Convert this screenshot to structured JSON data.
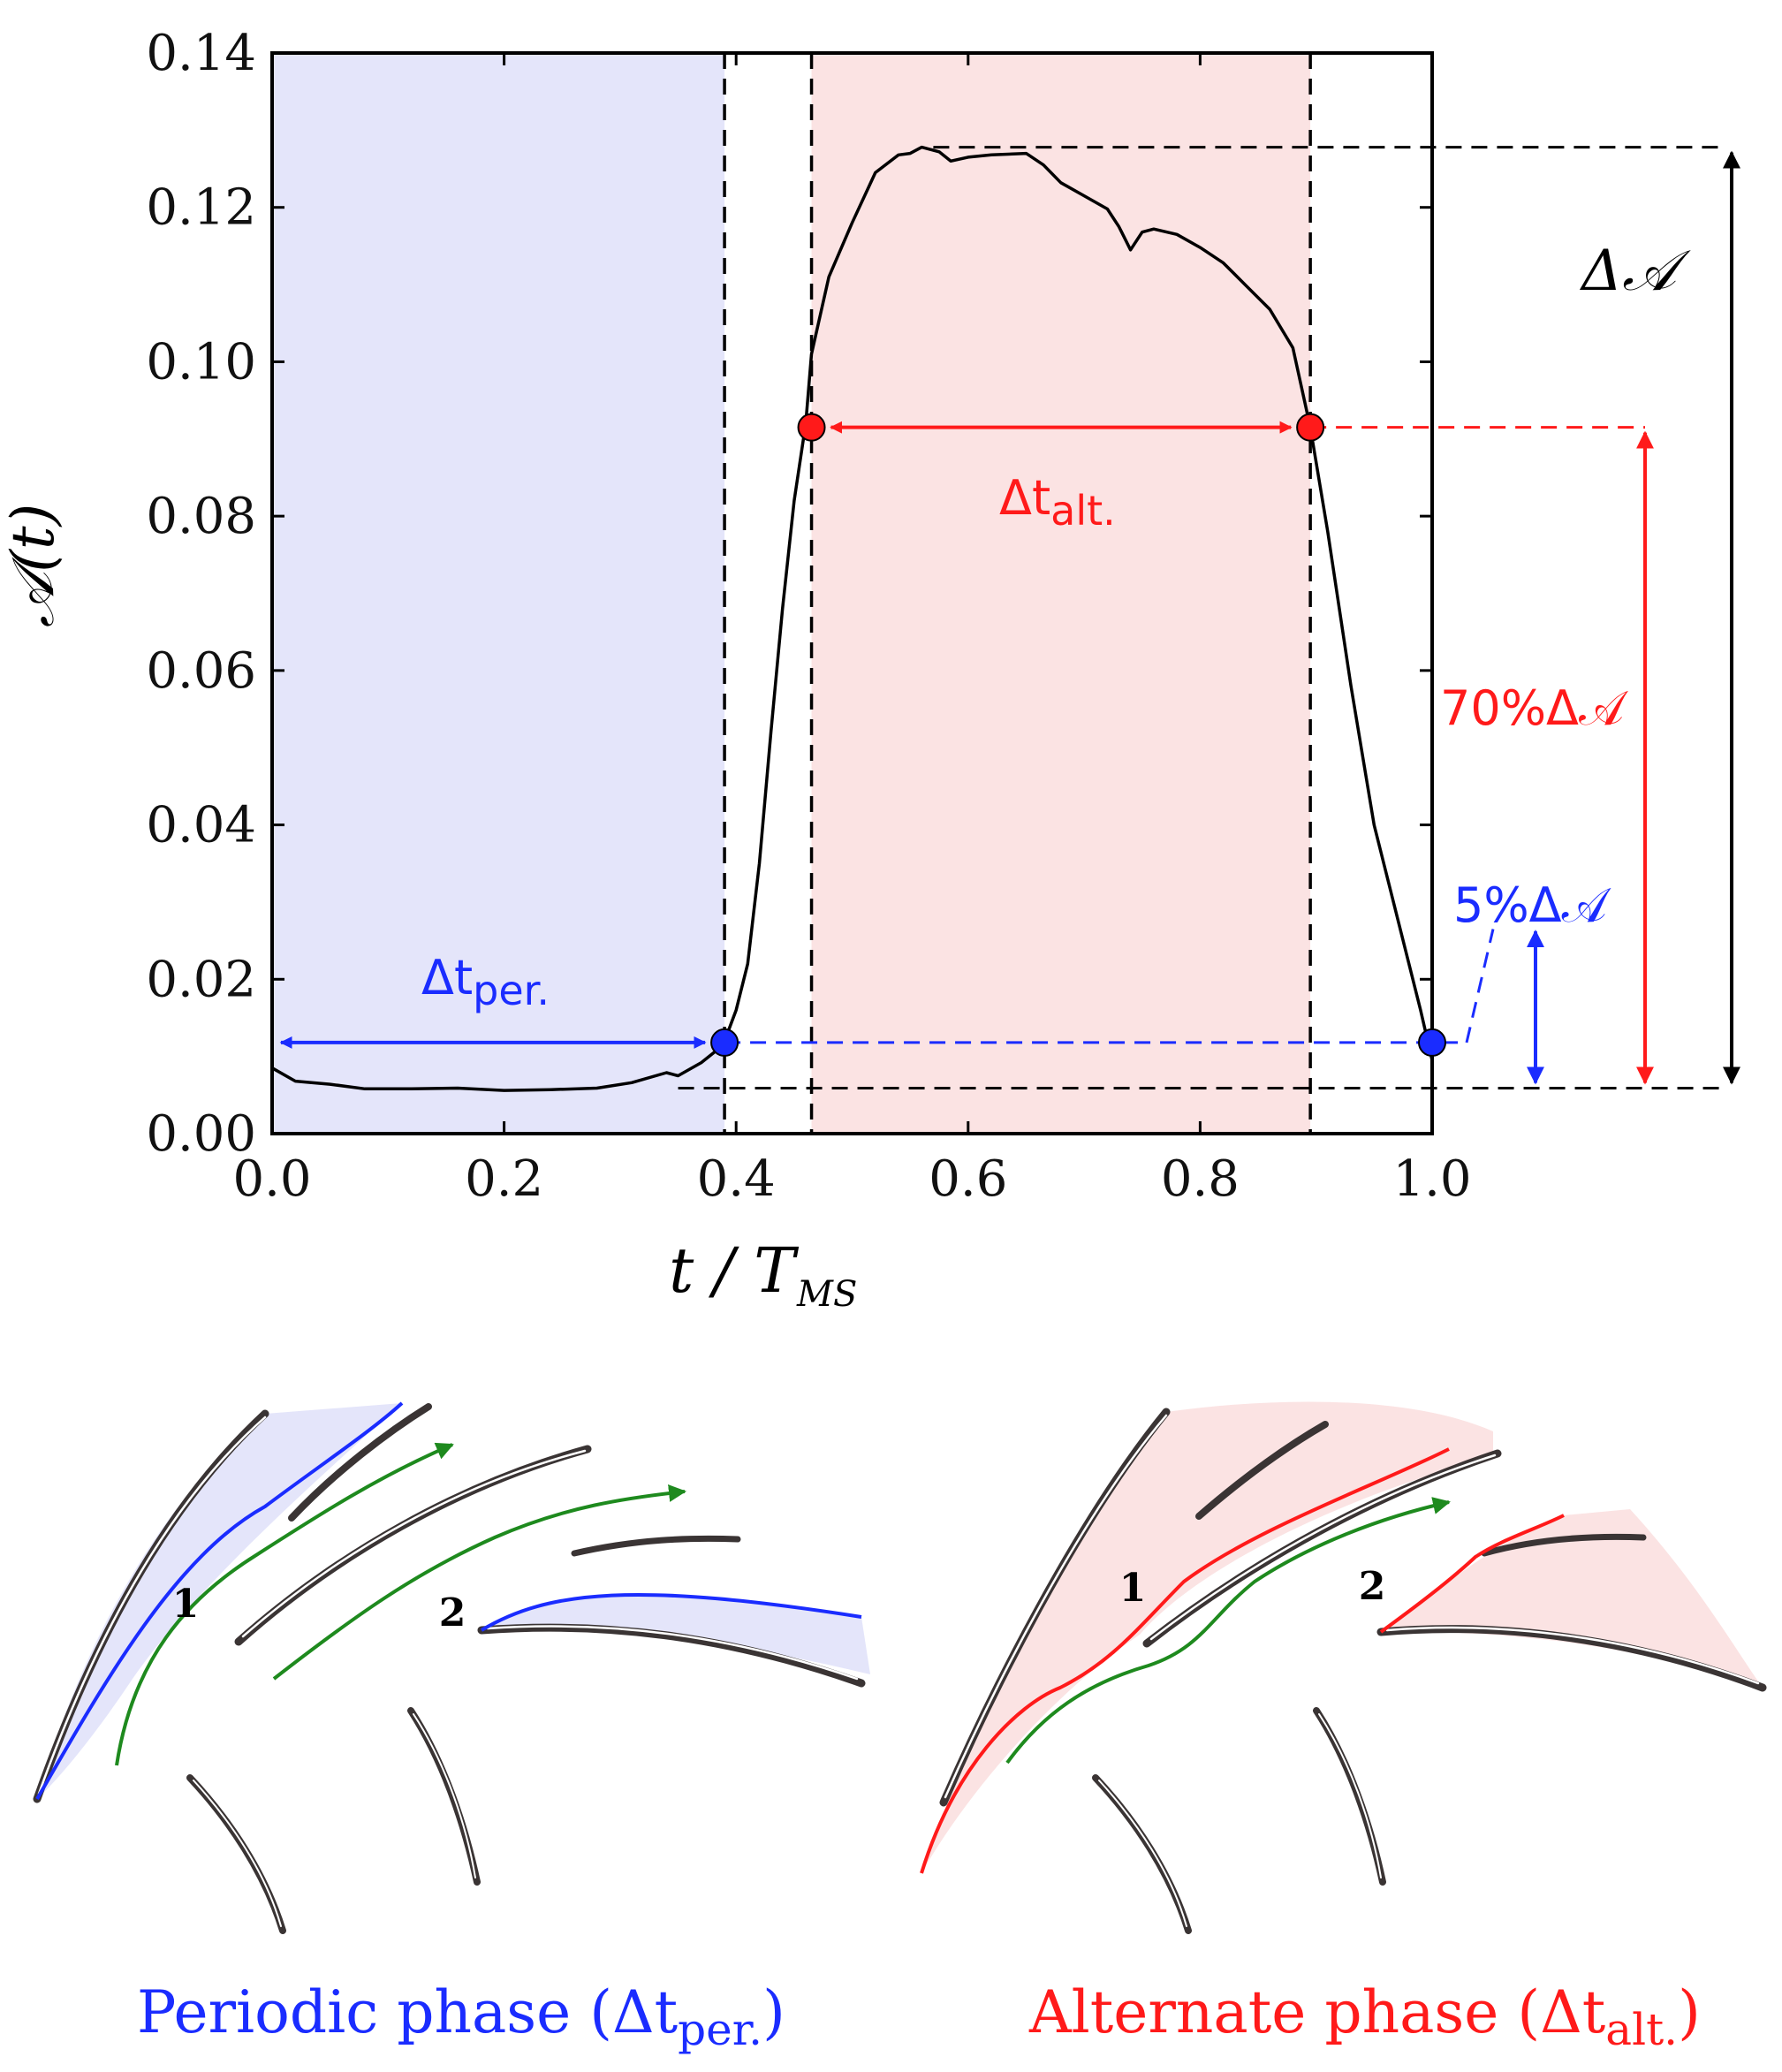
{
  "chart_data": {
    "type": "line",
    "ylabel": "𝒜(t)",
    "xlabel_main": "t / T",
    "xlabel_sub": "MS",
    "xlim": [
      0.0,
      1.0
    ],
    "ylim": [
      0.0,
      0.14
    ],
    "x_ticks": [
      "0.0",
      "0.2",
      "0.4",
      "0.6",
      "0.8",
      "1.0"
    ],
    "y_ticks": [
      "0.00",
      "0.02",
      "0.04",
      "0.06",
      "0.08",
      "0.10",
      "0.12",
      "0.14"
    ],
    "series": [
      {
        "name": "A(t)",
        "x": [
          0.0,
          0.02,
          0.05,
          0.08,
          0.12,
          0.16,
          0.2,
          0.24,
          0.28,
          0.31,
          0.34,
          0.35,
          0.37,
          0.385,
          0.39,
          0.4,
          0.41,
          0.42,
          0.43,
          0.44,
          0.45,
          0.46,
          0.465,
          0.48,
          0.5,
          0.52,
          0.54,
          0.55,
          0.56,
          0.575,
          0.585,
          0.6,
          0.62,
          0.65,
          0.665,
          0.68,
          0.7,
          0.72,
          0.73,
          0.74,
          0.75,
          0.76,
          0.78,
          0.8,
          0.82,
          0.84,
          0.86,
          0.88,
          0.895,
          0.91,
          0.93,
          0.95,
          0.97,
          0.99,
          1.0
        ],
        "y": [
          0.0085,
          0.0068,
          0.0064,
          0.0058,
          0.0058,
          0.0059,
          0.0056,
          0.0057,
          0.0059,
          0.0066,
          0.0079,
          0.0075,
          0.0092,
          0.011,
          0.012,
          0.016,
          0.022,
          0.035,
          0.052,
          0.068,
          0.082,
          0.092,
          0.101,
          0.111,
          0.118,
          0.1245,
          0.1268,
          0.127,
          0.1278,
          0.1272,
          0.126,
          0.1265,
          0.1268,
          0.127,
          0.1255,
          0.1232,
          0.1215,
          0.1198,
          0.1175,
          0.1145,
          0.1168,
          0.1172,
          0.1165,
          0.1148,
          0.1128,
          0.1098,
          0.1068,
          0.1018,
          0.0915,
          0.078,
          0.058,
          0.04,
          0.028,
          0.016,
          0.0095
        ]
      }
    ],
    "shaded_regions": [
      {
        "x0": 0.0,
        "x1": 0.39,
        "color": "#e4e5fa",
        "label": "periodic"
      },
      {
        "x0": 0.465,
        "x1": 0.895,
        "color": "#fbe3e3",
        "label": "alternate"
      }
    ],
    "vertical_dashed_x": [
      0.39,
      0.465,
      0.895
    ],
    "horizontal_dashed_y": {
      "max": 0.1278,
      "min": 0.0059,
      "seventy_pct": 0.0915,
      "five_pct": 0.0118
    },
    "markers": [
      {
        "x": 0.39,
        "y": 0.0118,
        "color": "#1a2cff"
      },
      {
        "x": 1.0,
        "y": 0.0118,
        "color": "#1a2cff"
      },
      {
        "x": 0.465,
        "y": 0.0915,
        "color": "#ff1a1a"
      },
      {
        "x": 0.895,
        "y": 0.0915,
        "color": "#ff1a1a"
      }
    ],
    "annotations": {
      "delta_A": "Δ𝒜",
      "seventy_pct": "70%Δ𝒜",
      "five_pct": "5%Δ𝒜",
      "dt_alt_main": "Δt",
      "dt_alt_sub": "alt.",
      "dt_per_main": "Δt",
      "dt_per_sub": "per."
    }
  },
  "diagrams": {
    "periodic": {
      "caption_main": "Periodic phase (Δt",
      "caption_sub": "per.",
      "caption_end": ")",
      "label_1": "1",
      "label_2": "2"
    },
    "alternate": {
      "caption_main": "Alternate phase (Δt",
      "caption_sub": "alt.",
      "caption_end": ")",
      "label_1": "1",
      "label_2": "2"
    }
  },
  "colors": {
    "blue": "#1a2cff",
    "red": "#ff1a1a",
    "green": "#1e8a1e",
    "blade": "#3a3434"
  }
}
